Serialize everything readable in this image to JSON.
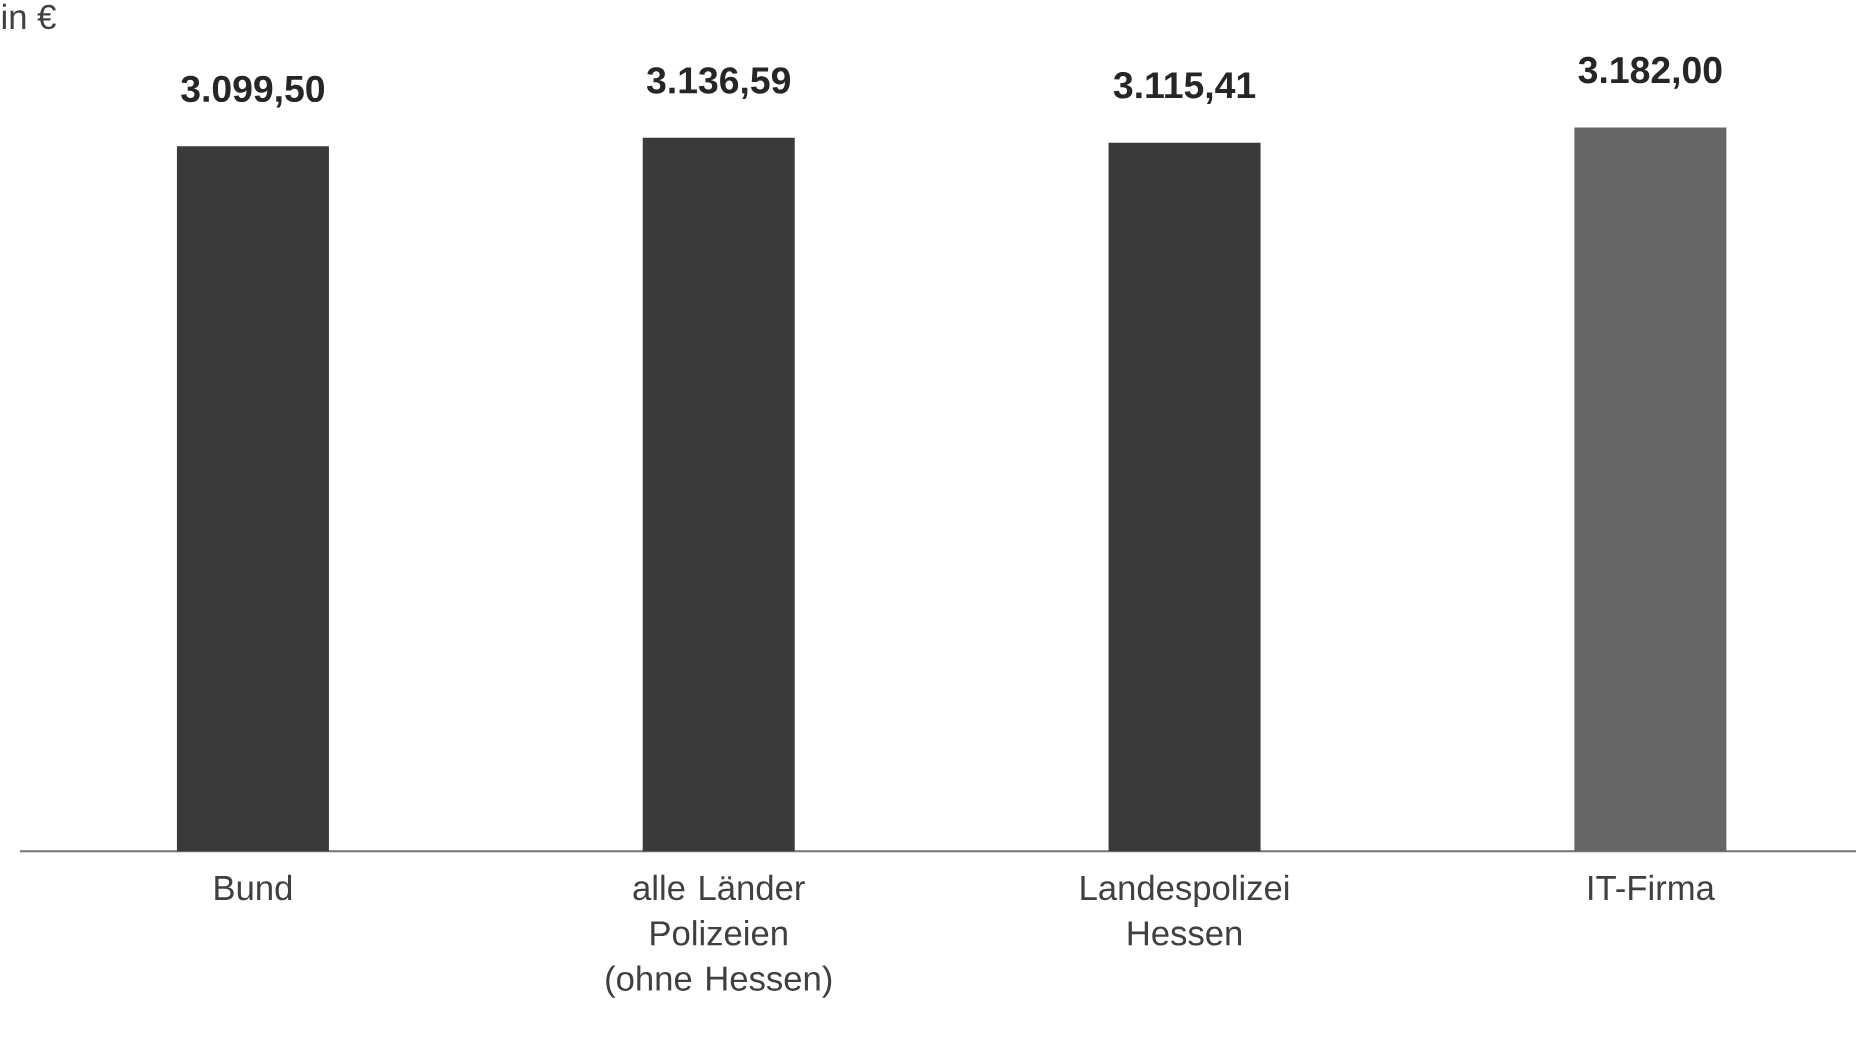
{
  "chart_data": {
    "type": "bar",
    "ylabel": "in €",
    "categories": [
      "Bund",
      "alle Länder Polizeien (ohne Hessen)",
      "Landespolizei Hessen",
      "IT-Firma"
    ],
    "values": [
      3099.5,
      3136.59,
      3115.41,
      3182.0
    ],
    "colors": [
      "#3a3a3a",
      "#3a3a3a",
      "#3a3a3a",
      "#666666"
    ],
    "value_labels": [
      "3.099,50",
      "3.136,59",
      "3.115,41",
      "3.182,00"
    ],
    "tick_labels": "x"
  }
}
